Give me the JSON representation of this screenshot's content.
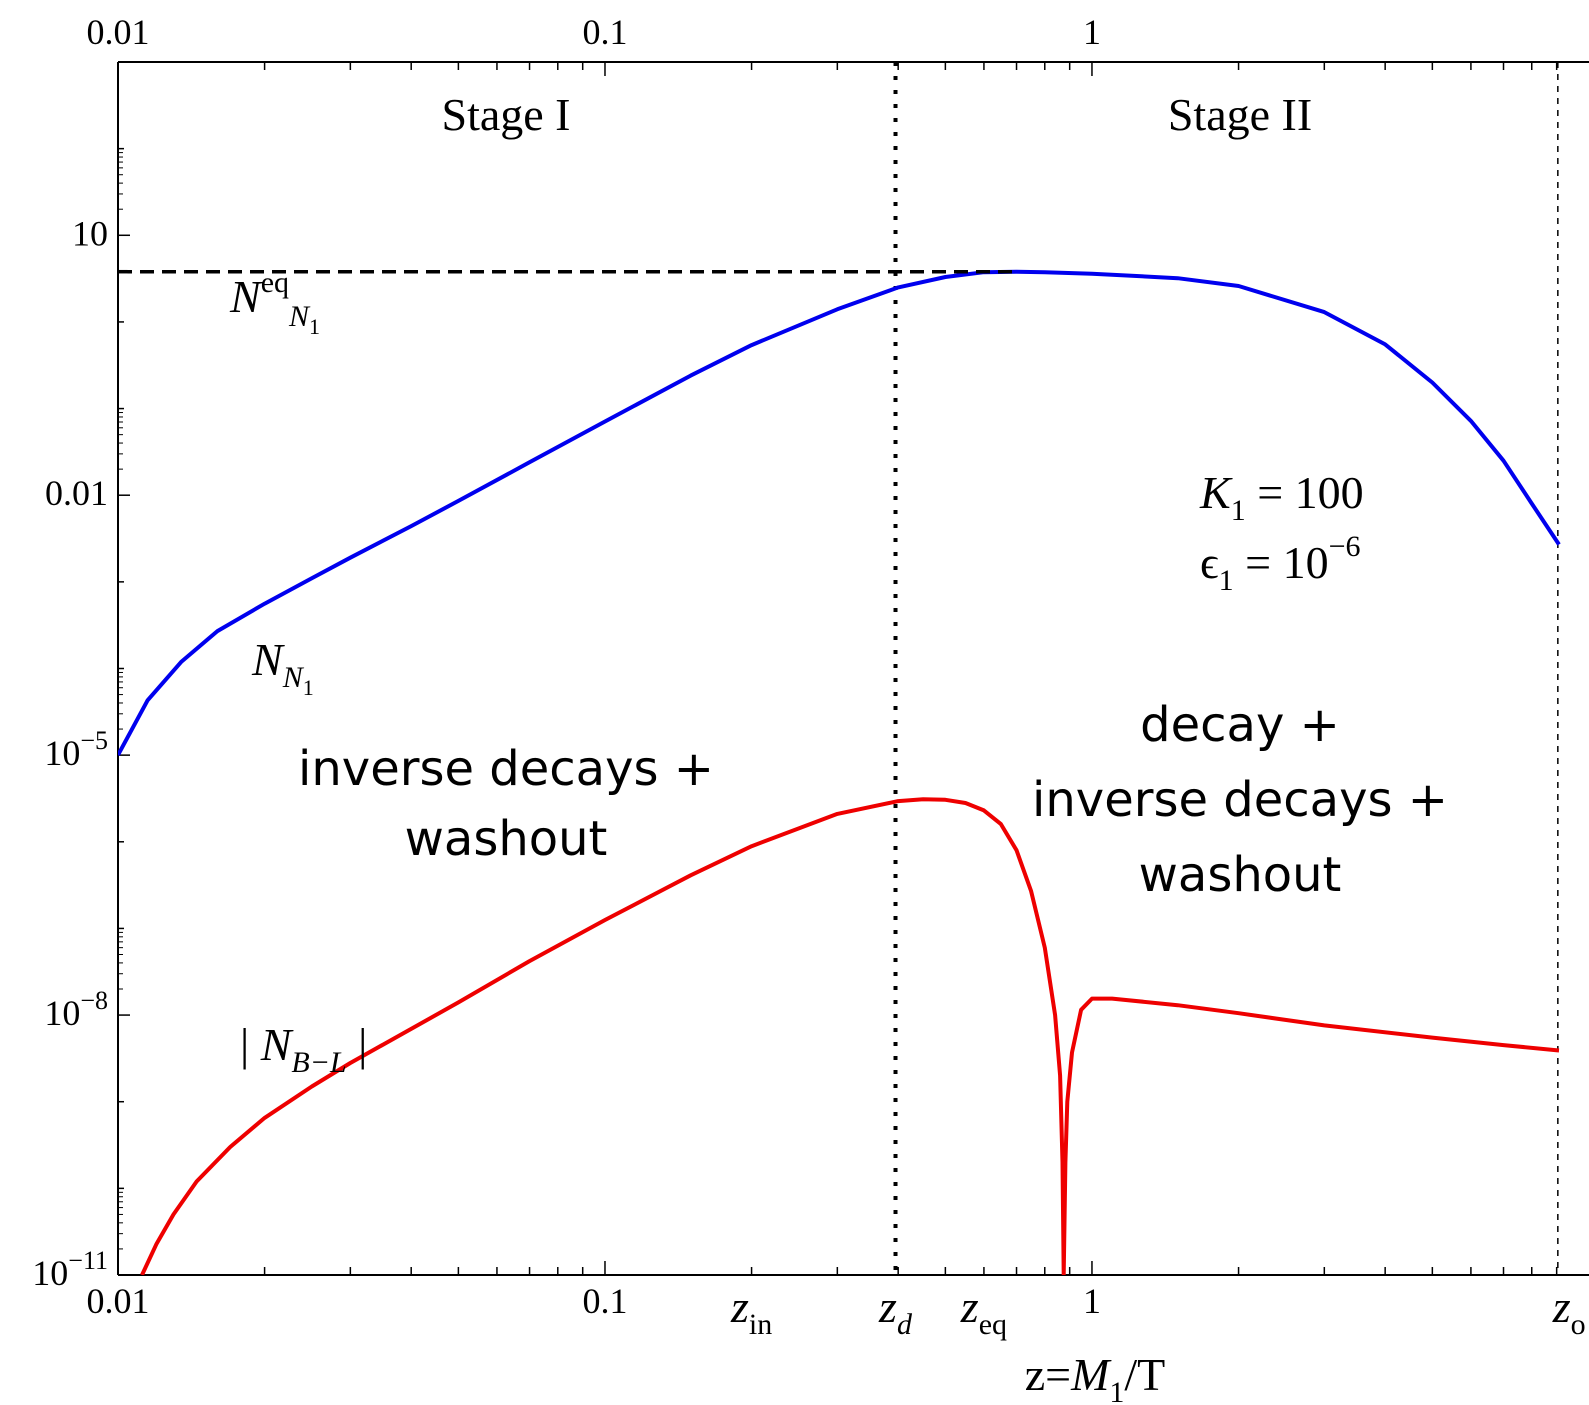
{
  "chart_data": {
    "type": "line",
    "xscale": "log",
    "yscale": "log",
    "xlim": [
      0.01,
      9.1
    ],
    "ylim": [
      1e-11,
      1000
    ],
    "grid": false,
    "xlabel": {
      "pre": "z=",
      "var": "M",
      "sub": "1",
      "post": "/T"
    },
    "x_ticks_bottom": [
      "0.01",
      "0.1",
      "1"
    ],
    "x_ticks_top": [
      "0.01",
      "0.1",
      "1"
    ],
    "y_ticks": [
      {
        "value": 10,
        "mant": "10",
        "exp": ""
      },
      {
        "value": 0.01,
        "mant": "0.01",
        "exp": ""
      },
      {
        "value": 1e-05,
        "mant": "10",
        "exp": "−5"
      },
      {
        "value": 1e-08,
        "mant": "10",
        "exp": "−8"
      },
      {
        "value": 1e-11,
        "mant": "10",
        "exp": "−11"
      }
    ],
    "series": [
      {
        "name": "N_N1",
        "color": "#0000ee",
        "style": "solid",
        "points": [
          [
            0.01,
            1e-05
          ],
          [
            0.0115,
            4.3e-05
          ],
          [
            0.0135,
            0.00012
          ],
          [
            0.016,
            0.00027
          ],
          [
            0.02,
            0.00056
          ],
          [
            0.025,
            0.0011
          ],
          [
            0.03,
            0.0019
          ],
          [
            0.04,
            0.0044
          ],
          [
            0.05,
            0.0086
          ],
          [
            0.07,
            0.024
          ],
          [
            0.1,
            0.071
          ],
          [
            0.15,
            0.24
          ],
          [
            0.2,
            0.54
          ],
          [
            0.3,
            1.4
          ],
          [
            0.4,
            2.5
          ],
          [
            0.5,
            3.3
          ],
          [
            0.6,
            3.75
          ],
          [
            0.7,
            3.8
          ],
          [
            0.8,
            3.75
          ],
          [
            1.0,
            3.6
          ],
          [
            1.5,
            3.2
          ],
          [
            2.0,
            2.6
          ],
          [
            3.0,
            1.3
          ],
          [
            4.0,
            0.55
          ],
          [
            5.0,
            0.2
          ],
          [
            6.0,
            0.072
          ],
          [
            7.0,
            0.025
          ],
          [
            8.0,
            0.008
          ],
          [
            9.1,
            0.0027
          ]
        ]
      },
      {
        "name": "N_eq_N1",
        "color": "#000000",
        "style": "dashed",
        "points": [
          [
            0.01,
            3.8
          ],
          [
            0.7,
            3.8
          ]
        ]
      },
      {
        "name": "|N_B-L|",
        "color": "#ee0000",
        "style": "solid",
        "points": [
          [
            0.0112,
            1e-11
          ],
          [
            0.012,
            2.3e-11
          ],
          [
            0.013,
            5e-11
          ],
          [
            0.0145,
            1.2e-10
          ],
          [
            0.017,
            3e-10
          ],
          [
            0.02,
            6.5e-10
          ],
          [
            0.025,
            1.5e-09
          ],
          [
            0.03,
            2.8e-09
          ],
          [
            0.05,
            1.4e-08
          ],
          [
            0.07,
            4.2e-08
          ],
          [
            0.1,
            1.25e-07
          ],
          [
            0.15,
            4.1e-07
          ],
          [
            0.2,
            8.9e-07
          ],
          [
            0.3,
            2.1e-06
          ],
          [
            0.4,
            2.95e-06
          ],
          [
            0.45,
            3.1e-06
          ],
          [
            0.5,
            3.05e-06
          ],
          [
            0.55,
            2.8e-06
          ],
          [
            0.6,
            2.3e-06
          ],
          [
            0.65,
            1.6e-06
          ],
          [
            0.7,
            8e-07
          ],
          [
            0.75,
            2.7e-07
          ],
          [
            0.8,
            6e-08
          ],
          [
            0.84,
            1e-08
          ],
          [
            0.86,
            2e-09
          ],
          [
            0.87,
            2e-10
          ],
          [
            0.875,
            1e-11
          ],
          [
            0.882,
            2e-10
          ],
          [
            0.89,
            1e-09
          ],
          [
            0.91,
            3.7e-09
          ],
          [
            0.95,
            1.15e-08
          ],
          [
            1.0,
            1.55e-08
          ],
          [
            1.1,
            1.55e-08
          ],
          [
            1.5,
            1.3e-08
          ],
          [
            2.0,
            1.05e-08
          ],
          [
            3.0,
            7.6e-09
          ],
          [
            5.0,
            5.5e-09
          ],
          [
            7.0,
            4.5e-09
          ],
          [
            9.1,
            3.9e-09
          ]
        ]
      }
    ],
    "vlines": [
      {
        "name": "z_d",
        "x": 0.395,
        "style": "dotted"
      },
      {
        "name": "z_off",
        "x": 9.05,
        "style": "dashed"
      }
    ],
    "x_marks": [
      {
        "name": "z_in",
        "x": 0.2,
        "text": "z",
        "sub": "in"
      },
      {
        "name": "z_d",
        "x": 0.395,
        "text": "z",
        "sub": "d"
      },
      {
        "name": "z_eq",
        "x": 0.6,
        "text": "z",
        "sub": "eq"
      },
      {
        "name": "z_off",
        "x": 9.55,
        "text": "z",
        "sub": "o"
      }
    ],
    "annotations": {
      "stage1": "Stage I",
      "stage2": "Stage II",
      "params": {
        "k_var": "K",
        "k_sub": "1",
        "k_val": " = 100",
        "e_var": "ϵ",
        "e_sub": "1",
        "e_val": " = 10",
        "e_exp": "−6"
      },
      "left_process": [
        "inverse decays +",
        "washout"
      ],
      "right_process": [
        "decay +",
        "inverse decays +",
        "washout"
      ],
      "label_neq": {
        "var": "N",
        "sup": "eq",
        "sub": "N",
        "subsub": "1"
      },
      "label_nn1": {
        "var": "N",
        "sub": "N",
        "subsub": "1"
      },
      "label_nbl": {
        "pre": "| ",
        "var": "N",
        "sub": "B−L",
        "post": " |"
      }
    }
  }
}
